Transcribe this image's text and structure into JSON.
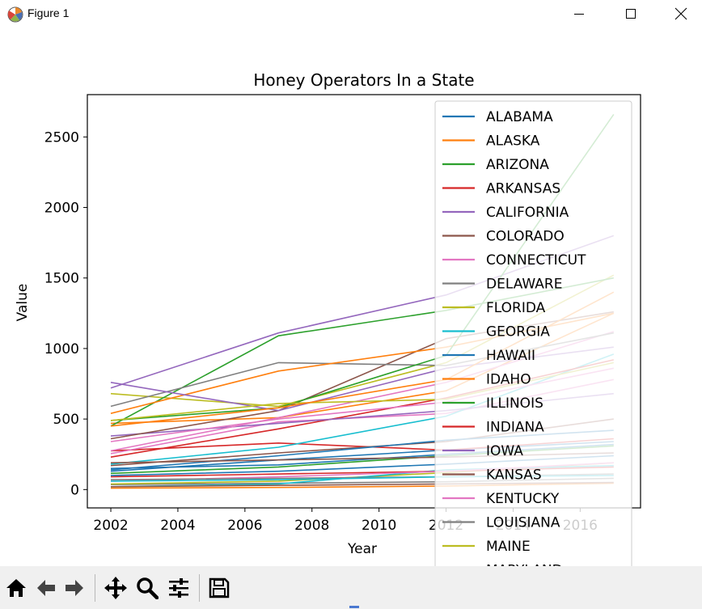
{
  "window": {
    "title": "Figure 1",
    "controls": [
      "minimize",
      "maximize",
      "close"
    ]
  },
  "toolbar": {
    "buttons": [
      "home-icon",
      "back-icon",
      "forward-icon",
      "pan-icon",
      "zoom-icon",
      "configure-subplots-icon",
      "save-icon"
    ]
  },
  "chart_data": {
    "type": "line",
    "title": "Honey Operators In a State",
    "xlabel": "Year",
    "ylabel": "Value",
    "xlim": [
      2001.3,
      2017.8
    ],
    "ylim": [
      -130,
      2800
    ],
    "xticks": [
      2002,
      2004,
      2006,
      2008,
      2010,
      2012,
      2014,
      2016
    ],
    "yticks": [
      0,
      500,
      1000,
      1500,
      2000,
      2500
    ],
    "x": [
      2002,
      2007,
      2012,
      2017
    ],
    "grid": false,
    "legend_position": "upper right",
    "legend_partial_label": "MARYLAND",
    "series": [
      {
        "name": "ALABAMA",
        "color": "#1f77b4",
        "values": [
          130,
          210,
          280,
          340
        ]
      },
      {
        "name": "ALASKA",
        "color": "#ff7f0e",
        "values": [
          10,
          15,
          25,
          45
        ]
      },
      {
        "name": "ARIZONA",
        "color": "#2ca02c",
        "values": [
          115,
          160,
          240,
          310
        ]
      },
      {
        "name": "ARKANSAS",
        "color": "#d62728",
        "values": [
          275,
          330,
          280,
          360
        ]
      },
      {
        "name": "CALIFORNIA",
        "color": "#9467bd",
        "values": [
          720,
          1110,
          1380,
          1800
        ]
      },
      {
        "name": "COLORADO",
        "color": "#8c564b",
        "values": [
          170,
          260,
          340,
          500
        ]
      },
      {
        "name": "CONNECTICUT",
        "color": "#e377c2",
        "values": [
          255,
          480,
          540,
          780
        ]
      },
      {
        "name": "DELAWARE",
        "color": "#7f7f7f",
        "values": [
          35,
          45,
          55,
          80
        ]
      },
      {
        "name": "FLORIDA",
        "color": "#bcbd22",
        "values": [
          680,
          590,
          900,
          1520
        ]
      },
      {
        "name": "GEORGIA",
        "color": "#17becf",
        "values": [
          180,
          300,
          520,
          960
        ]
      },
      {
        "name": "HAWAII",
        "color": "#1f77b4",
        "values": [
          140,
          240,
          350,
          420
        ]
      },
      {
        "name": "IDAHO",
        "color": "#ff7f0e",
        "values": [
          470,
          510,
          700,
          1250
        ]
      },
      {
        "name": "ILLINOIS",
        "color": "#2ca02c",
        "values": [
          450,
          1090,
          1270,
          1500
        ]
      },
      {
        "name": "INDIANA",
        "color": "#d62728",
        "values": [
          230,
          430,
          650,
          920
        ]
      },
      {
        "name": "IOWA",
        "color": "#9467bd",
        "values": [
          380,
          470,
          560,
          680
        ]
      },
      {
        "name": "KANSAS",
        "color": "#8c564b",
        "values": [
          360,
          560,
          1070,
          1260
        ]
      },
      {
        "name": "KENTUCKY",
        "color": "#e377c2",
        "values": [
          275,
          510,
          760,
          1120
        ]
      },
      {
        "name": "LOUISIANA",
        "color": "#7f7f7f",
        "values": [
          590,
          900,
          880,
          1110
        ]
      },
      {
        "name": "MAINE",
        "color": "#bcbd22",
        "values": [
          40,
          60,
          120,
          190
        ]
      },
      {
        "name": "",
        "color": "#17becf",
        "values": [
          20,
          40,
          140,
          170
        ]
      },
      {
        "name": "",
        "color": "#1f77b4",
        "values": [
          150,
          175,
          250,
          320
        ]
      },
      {
        "name": "",
        "color": "#ff7f0e",
        "values": [
          540,
          840,
          1010,
          1250
        ]
      },
      {
        "name": "",
        "color": "#2ca02c",
        "values": [
          490,
          580,
          950,
          2660
        ]
      },
      {
        "name": "",
        "color": "#d62728",
        "values": [
          90,
          110,
          130,
          160
        ]
      },
      {
        "name": "",
        "color": "#9467bd",
        "values": [
          760,
          560,
          860,
          1010
        ]
      },
      {
        "name": "",
        "color": "#8c564b",
        "values": [
          20,
          30,
          40,
          50
        ]
      },
      {
        "name": "",
        "color": "#e377c2",
        "values": [
          60,
          90,
          130,
          190
        ]
      },
      {
        "name": "",
        "color": "#7f7f7f",
        "values": [
          70,
          80,
          90,
          110
        ]
      },
      {
        "name": "",
        "color": "#bcbd22",
        "values": [
          490,
          610,
          640,
          900
        ]
      },
      {
        "name": "",
        "color": "#17becf",
        "values": [
          60,
          70,
          90,
          100
        ]
      },
      {
        "name": "",
        "color": "#ff7f0e",
        "values": [
          450,
          580,
          780,
          1400
        ]
      },
      {
        "name": "",
        "color": "#1f77b4",
        "values": [
          100,
          130,
          180,
          240
        ]
      },
      {
        "name": "",
        "color": "#e377c2",
        "values": [
          340,
          500,
          620,
          860
        ]
      },
      {
        "name": "",
        "color": "#8c564b",
        "values": [
          190,
          210,
          230,
          260
        ]
      }
    ]
  }
}
